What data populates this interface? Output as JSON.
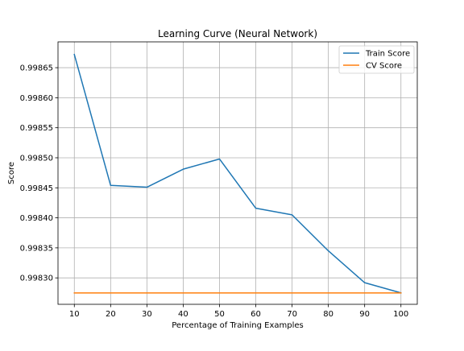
{
  "chart_data": {
    "type": "line",
    "title": "Learning Curve (Neural Network)",
    "xlabel": "Percentage of Training Examples",
    "ylabel": "Score",
    "x": [
      10,
      20,
      30,
      40,
      50,
      60,
      70,
      80,
      90,
      100
    ],
    "xticks": [
      "10",
      "20",
      "30",
      "40",
      "50",
      "60",
      "70",
      "80",
      "90",
      "100"
    ],
    "yticks": [
      "0.99830",
      "0.99835",
      "0.99840",
      "0.99845",
      "0.99850",
      "0.99855",
      "0.99860",
      "0.99865"
    ],
    "xlim": [
      5.5,
      104.5
    ],
    "ylim": [
      0.998256,
      0.998693
    ],
    "grid": true,
    "legend_position": "upper right",
    "series": [
      {
        "name": "Train Score",
        "color": "#1f77b4",
        "values": [
          0.998672,
          0.998454,
          0.998451,
          0.998481,
          0.998498,
          0.998416,
          0.998405,
          0.998345,
          0.998292,
          0.998275
        ]
      },
      {
        "name": "CV Score",
        "color": "#ff7f0e",
        "values": [
          0.998275,
          0.998275,
          0.998275,
          0.998275,
          0.998275,
          0.998275,
          0.998275,
          0.998275,
          0.998275,
          0.998275
        ]
      }
    ]
  }
}
